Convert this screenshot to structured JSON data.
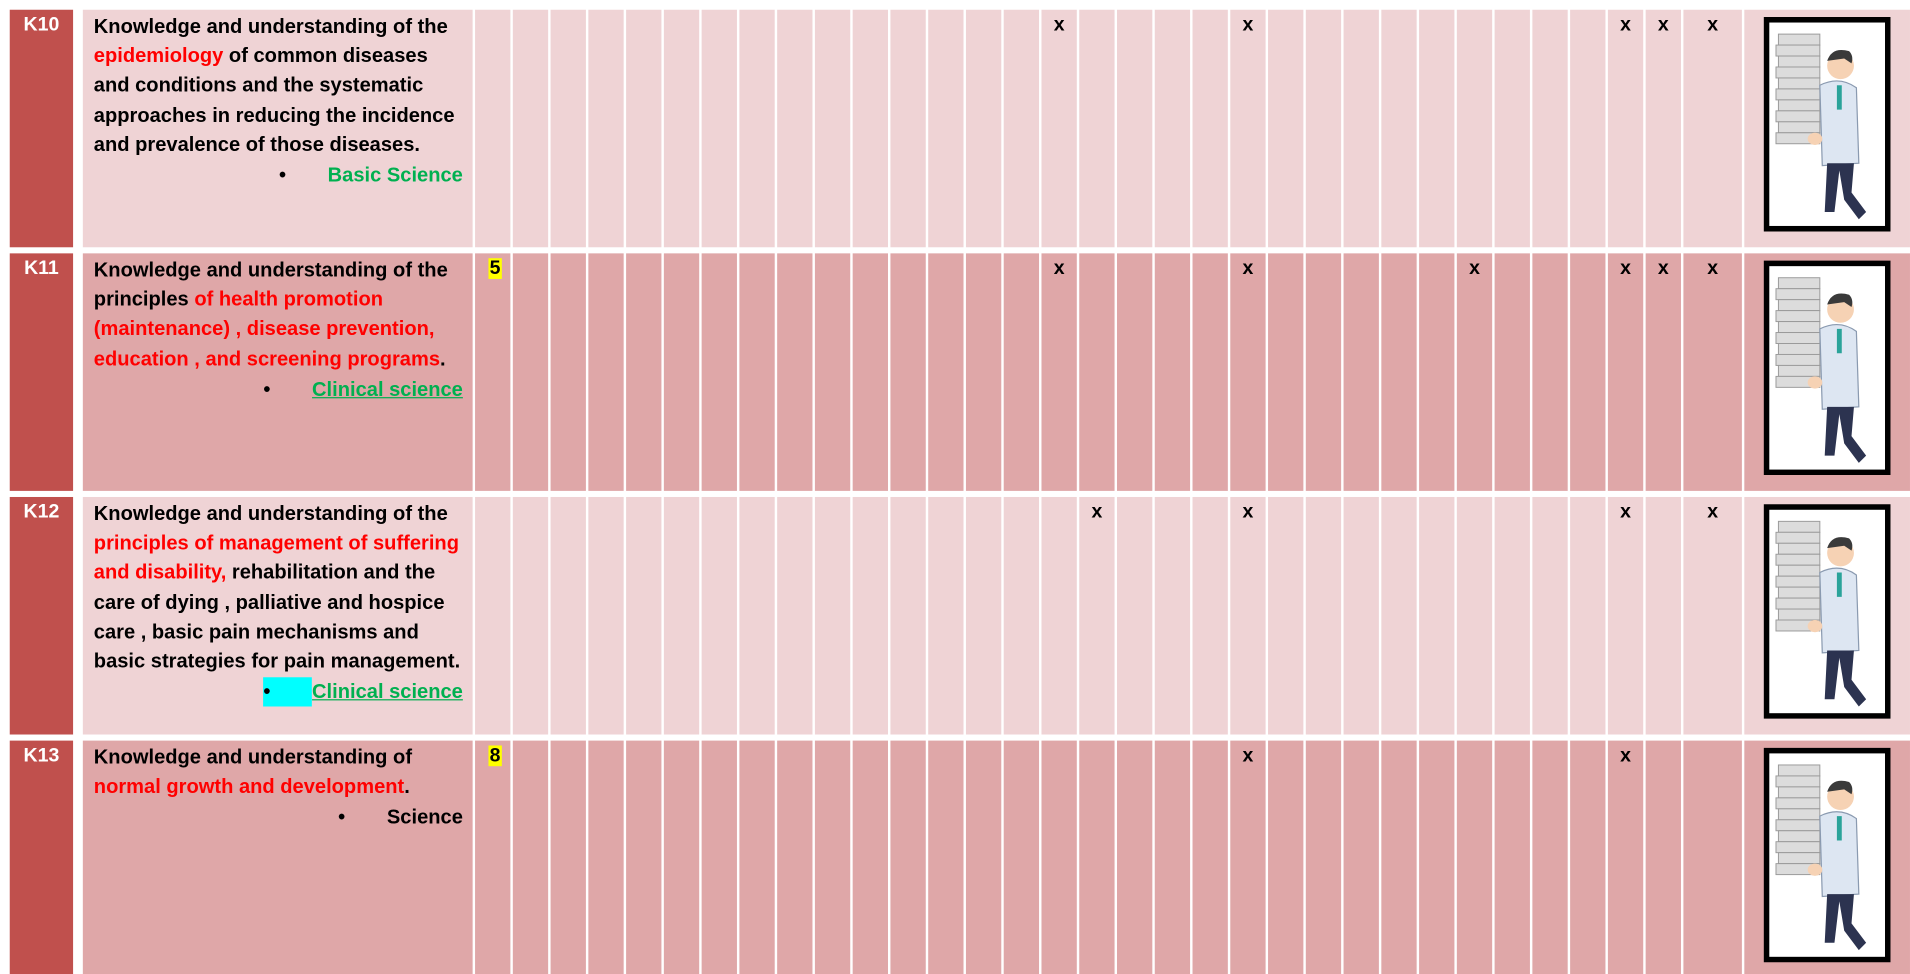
{
  "rows": [
    {
      "code": "K10",
      "description": [
        {
          "text": "Knowledge and understanding of the ",
          "red": false
        },
        {
          "text": "epidemiology",
          "red": true
        },
        {
          "text": " of common diseases and conditions and the systematic approaches in reducing the incidence and prevalence of those diseases.",
          "red": false
        }
      ],
      "bullet": {
        "text": "Basic Science",
        "color": "green",
        "underline": false,
        "highlight": false
      },
      "cells": [
        null,
        null,
        null,
        null,
        null,
        null,
        null,
        null,
        null,
        null,
        null,
        null,
        null,
        null,
        null,
        "x",
        null,
        null,
        null,
        null,
        "x",
        null,
        null,
        null,
        null,
        null,
        null,
        null,
        null,
        null,
        "x",
        "x",
        "x"
      ]
    },
    {
      "code": "K11",
      "description": [
        {
          "text": "Knowledge and understanding of the principles ",
          "red": false
        },
        {
          "text": "of health promotion (maintenance) , disease prevention, education , and screening programs",
          "red": true
        },
        {
          "text": ".",
          "red": false
        }
      ],
      "bullet": {
        "text": "Clinical science",
        "color": "green",
        "underline": true,
        "highlight": false
      },
      "cells": [
        5,
        null,
        null,
        null,
        null,
        null,
        null,
        null,
        null,
        null,
        null,
        null,
        null,
        null,
        null,
        "x",
        null,
        null,
        null,
        null,
        "x",
        null,
        null,
        null,
        null,
        null,
        "x",
        null,
        null,
        null,
        "x",
        "x",
        "x"
      ]
    },
    {
      "code": "K12",
      "description": [
        {
          "text": "Knowledge and understanding of the ",
          "red": false
        },
        {
          "text": "principles of management of suffering and disability,",
          "red": true
        },
        {
          "text": " rehabilitation and the care of dying , palliative and hospice care , basic pain mechanisms and basic strategies for pain management.",
          "red": false
        }
      ],
      "bullet": {
        "text": "Clinical science",
        "color": "green",
        "underline": true,
        "highlight": true
      },
      "cells": [
        null,
        null,
        null,
        null,
        null,
        null,
        null,
        null,
        null,
        null,
        null,
        null,
        null,
        null,
        null,
        null,
        "x",
        null,
        null,
        null,
        "x",
        null,
        null,
        null,
        null,
        null,
        null,
        null,
        null,
        null,
        "x",
        null,
        "x"
      ]
    },
    {
      "code": "K13",
      "description": [
        {
          "text": "Knowledge and understanding of ",
          "red": false
        },
        {
          "text": "normal growth and development",
          "red": true
        },
        {
          "text": ".",
          "red": false
        }
      ],
      "bullet": {
        "text": "Science",
        "color": "black",
        "underline": false,
        "highlight": false
      },
      "cells": [
        8,
        null,
        null,
        null,
        null,
        null,
        null,
        null,
        null,
        null,
        null,
        null,
        null,
        null,
        null,
        null,
        null,
        null,
        null,
        null,
        "x",
        null,
        null,
        null,
        null,
        null,
        null,
        null,
        null,
        null,
        "x",
        null,
        null
      ]
    }
  ]
}
